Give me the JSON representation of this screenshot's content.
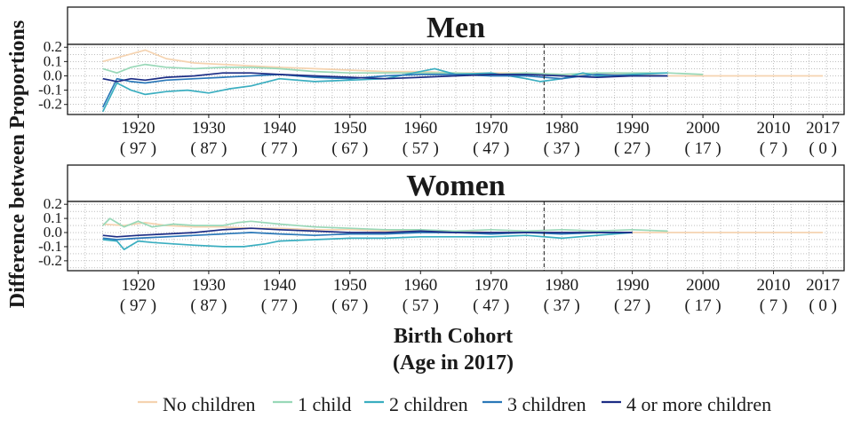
{
  "chart_data": {
    "type": "line",
    "xlabel_line1": "Birth Cohort",
    "xlabel_line2": "(Age in 2017)",
    "ylabel": "Difference between Proportions",
    "xlim": [
      1910,
      2020
    ],
    "ylim": [
      -0.27,
      0.22
    ],
    "x_ticks": [
      {
        "year": 1920,
        "label": "1920",
        "age": "( 97 )"
      },
      {
        "year": 1930,
        "label": "1930",
        "age": "( 87 )"
      },
      {
        "year": 1940,
        "label": "1940",
        "age": "( 77 )"
      },
      {
        "year": 1950,
        "label": "1950",
        "age": "( 67 )"
      },
      {
        "year": 1960,
        "label": "1960",
        "age": "( 57 )"
      },
      {
        "year": 1970,
        "label": "1970",
        "age": "( 47 )"
      },
      {
        "year": 1980,
        "label": "1980",
        "age": "( 37 )"
      },
      {
        "year": 1990,
        "label": "1990",
        "age": "( 27 )"
      },
      {
        "year": 2000,
        "label": "2000",
        "age": "( 17 )"
      },
      {
        "year": 2010,
        "label": "2010",
        "age": "( 7 )"
      },
      {
        "year": 2017,
        "label": "2017",
        "age": "( 0 )"
      }
    ],
    "y_ticks": [
      {
        "value": 0.2,
        "label": "0.2"
      },
      {
        "value": 0.1,
        "label": "0.1"
      },
      {
        "value": 0.0,
        "label": "0.0"
      },
      {
        "value": -0.1,
        "label": "-0.1"
      },
      {
        "value": -0.2,
        "label": "-0.2"
      }
    ],
    "vline_x": 1977.5,
    "grid": true,
    "legend_position": "bottom",
    "series": [
      {
        "name": "No children",
        "color": "#f5d3b0"
      },
      {
        "name": "1 child",
        "color": "#99d8b8"
      },
      {
        "name": "2 children",
        "color": "#3aaec0"
      },
      {
        "name": "3 children",
        "color": "#2b78b8"
      },
      {
        "name": "4 or more children",
        "color": "#1c2d85"
      }
    ],
    "panels": [
      {
        "title": "Men",
        "series": [
          {
            "name": "No children",
            "x": [
              1915,
              1918,
              1921,
              1924,
              1928,
              1932,
              1936,
              1940,
              1945,
              1950,
              1955,
              1960,
              1965,
              1970,
              1975,
              1980,
              1985,
              1990,
              1995,
              2000,
              2005,
              2010,
              2017
            ],
            "y": [
              0.1,
              0.14,
              0.18,
              0.12,
              0.09,
              0.08,
              0.07,
              0.06,
              0.05,
              0.04,
              0.03,
              0.03,
              0.02,
              0.02,
              0.02,
              0.01,
              0.01,
              0.01,
              0.0,
              0.0,
              0.0,
              0.0,
              0.0
            ]
          },
          {
            "name": "1 child",
            "x": [
              1915,
              1917,
              1919,
              1921,
              1924,
              1928,
              1932,
              1936,
              1940,
              1945,
              1950,
              1955,
              1960,
              1965,
              1970,
              1975,
              1980,
              1985,
              1990,
              1995,
              2000
            ],
            "y": [
              0.05,
              0.02,
              0.06,
              0.08,
              0.06,
              0.05,
              0.06,
              0.06,
              0.05,
              0.03,
              0.02,
              0.02,
              0.02,
              0.02,
              0.01,
              0.02,
              0.01,
              0.02,
              0.02,
              0.02,
              0.01
            ]
          },
          {
            "name": "2 children",
            "x": [
              1915,
              1917,
              1919,
              1921,
              1924,
              1927,
              1930,
              1933,
              1936,
              1940,
              1945,
              1950,
              1955,
              1960,
              1962,
              1965,
              1970,
              1975,
              1977,
              1980,
              1983,
              1985,
              1990,
              1995
            ],
            "y": [
              -0.25,
              -0.05,
              -0.1,
              -0.13,
              -0.11,
              -0.1,
              -0.12,
              -0.09,
              -0.07,
              -0.02,
              -0.04,
              -0.03,
              -0.02,
              0.03,
              0.05,
              0.01,
              0.02,
              -0.02,
              -0.04,
              -0.02,
              0.02,
              0.0,
              0.01,
              0.02
            ]
          },
          {
            "name": "3 children",
            "x": [
              1915,
              1917,
              1919,
              1921,
              1924,
              1928,
              1932,
              1936,
              1940,
              1945,
              1950,
              1955,
              1960,
              1965,
              1970,
              1975,
              1980,
              1983,
              1985,
              1990,
              1995
            ],
            "y": [
              -0.22,
              -0.02,
              -0.04,
              -0.05,
              -0.03,
              -0.02,
              -0.01,
              0.0,
              0.01,
              -0.01,
              -0.02,
              0.0,
              0.01,
              0.01,
              0.0,
              0.0,
              -0.02,
              0.0,
              0.01,
              0.0,
              0.0
            ]
          },
          {
            "name": "4 or more children",
            "x": [
              1915,
              1917,
              1919,
              1921,
              1924,
              1928,
              1932,
              1936,
              1940,
              1945,
              1950,
              1955,
              1960,
              1965,
              1970,
              1975,
              1980,
              1985,
              1990,
              1995
            ],
            "y": [
              -0.02,
              -0.04,
              -0.02,
              -0.03,
              -0.01,
              0.0,
              0.02,
              0.02,
              0.01,
              0.0,
              -0.01,
              -0.02,
              -0.01,
              0.0,
              0.01,
              0.01,
              0.0,
              -0.01,
              0.0,
              0.0
            ]
          }
        ]
      },
      {
        "title": "Women",
        "series": [
          {
            "name": "No children",
            "x": [
              1915,
              1918,
              1921,
              1924,
              1928,
              1932,
              1936,
              1940,
              1945,
              1950,
              1955,
              1960,
              1965,
              1970,
              1975,
              1980,
              1985,
              1990,
              1995,
              2000,
              2005,
              2010,
              2017
            ],
            "y": [
              0.06,
              0.05,
              0.07,
              0.05,
              0.04,
              0.04,
              0.03,
              0.03,
              0.02,
              0.02,
              0.01,
              0.01,
              0.01,
              0.0,
              0.0,
              0.0,
              0.0,
              0.0,
              0.0,
              0.0,
              0.0,
              0.0,
              0.0
            ]
          },
          {
            "name": "1 child",
            "x": [
              1915,
              1916,
              1918,
              1920,
              1922,
              1925,
              1928,
              1932,
              1934,
              1936,
              1940,
              1945,
              1950,
              1955,
              1960,
              1965,
              1970,
              1975,
              1980,
              1985,
              1990,
              1995
            ],
            "y": [
              0.05,
              0.1,
              0.04,
              0.08,
              0.04,
              0.06,
              0.05,
              0.05,
              0.07,
              0.08,
              0.06,
              0.04,
              0.03,
              0.02,
              0.02,
              0.01,
              0.02,
              0.01,
              0.02,
              0.01,
              0.02,
              0.01
            ]
          },
          {
            "name": "2 children",
            "x": [
              1915,
              1917,
              1918,
              1920,
              1922,
              1925,
              1928,
              1932,
              1935,
              1938,
              1940,
              1945,
              1950,
              1955,
              1960,
              1965,
              1970,
              1975,
              1980,
              1985,
              1990
            ],
            "y": [
              -0.05,
              -0.06,
              -0.12,
              -0.06,
              -0.07,
              -0.08,
              -0.09,
              -0.1,
              -0.1,
              -0.08,
              -0.06,
              -0.05,
              -0.04,
              -0.04,
              -0.03,
              -0.03,
              -0.03,
              -0.02,
              -0.04,
              -0.02,
              0.0
            ]
          },
          {
            "name": "3 children",
            "x": [
              1915,
              1917,
              1920,
              1924,
              1928,
              1932,
              1936,
              1940,
              1945,
              1950,
              1955,
              1960,
              1965,
              1970,
              1975,
              1980,
              1985,
              1990
            ],
            "y": [
              -0.04,
              -0.05,
              -0.04,
              -0.03,
              -0.02,
              -0.01,
              0.0,
              -0.01,
              -0.02,
              -0.01,
              -0.01,
              0.0,
              0.0,
              -0.01,
              0.0,
              -0.01,
              0.0,
              0.0
            ]
          },
          {
            "name": "4 or more children",
            "x": [
              1915,
              1917,
              1920,
              1924,
              1928,
              1932,
              1936,
              1940,
              1945,
              1950,
              1955,
              1960,
              1965,
              1970,
              1975,
              1980,
              1985,
              1990
            ],
            "y": [
              -0.02,
              -0.03,
              -0.02,
              -0.01,
              0.0,
              0.02,
              0.03,
              0.02,
              0.01,
              0.0,
              0.0,
              0.01,
              0.0,
              0.0,
              0.0,
              0.0,
              0.0,
              0.0
            ]
          }
        ]
      }
    ]
  }
}
